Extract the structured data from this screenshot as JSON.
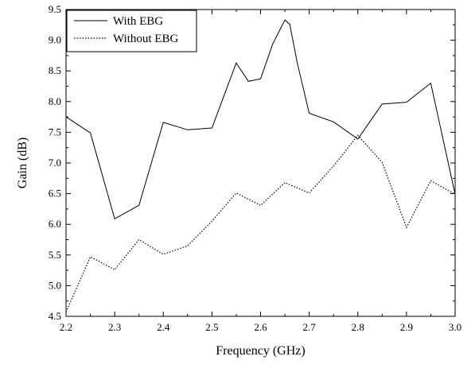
{
  "chart_data": {
    "type": "line",
    "title": "",
    "xlabel": "Frequency (GHz)",
    "ylabel": "Gain (dB)",
    "xlim": [
      2.2,
      3.0
    ],
    "ylim": [
      4.5,
      9.5
    ],
    "xticks": [
      2.2,
      2.3,
      2.4,
      2.5,
      2.6,
      2.7,
      2.8,
      2.9,
      3.0
    ],
    "xtick_labels": [
      "2.2",
      "2.3",
      "2.4",
      "2.5",
      "2.6",
      "2.7",
      "2.8",
      "2.9",
      "3.0"
    ],
    "yticks": [
      4.5,
      5.0,
      5.5,
      6.0,
      6.5,
      7.0,
      7.5,
      8.0,
      8.5,
      9.0,
      9.5
    ],
    "ytick_labels": [
      "4.5",
      "5.0",
      "5.5",
      "6.0",
      "6.5",
      "7.0",
      "7.5",
      "8.0",
      "8.5",
      "9.0",
      "9.5"
    ],
    "grid": false,
    "legend_position": "top-left",
    "series": [
      {
        "name": "With EBG",
        "style": "solid",
        "color": "#000000",
        "x": [
          2.2,
          2.25,
          2.3,
          2.35,
          2.4,
          2.45,
          2.5,
          2.55,
          2.575,
          2.6,
          2.625,
          2.65,
          2.66,
          2.675,
          2.7,
          2.75,
          2.8,
          2.85,
          2.9,
          2.95,
          3.0
        ],
        "y": [
          7.75,
          7.49,
          6.09,
          6.31,
          7.66,
          7.54,
          7.57,
          8.63,
          8.33,
          8.37,
          8.94,
          9.33,
          9.26,
          8.65,
          7.81,
          7.67,
          7.39,
          7.96,
          7.99,
          8.3,
          6.49
        ]
      },
      {
        "name": "Without EBG",
        "style": "dotted",
        "color": "#000000",
        "x": [
          2.2,
          2.25,
          2.3,
          2.35,
          2.4,
          2.45,
          2.5,
          2.55,
          2.6,
          2.65,
          2.7,
          2.75,
          2.8,
          2.85,
          2.9,
          2.95,
          3.0
        ],
        "y": [
          4.57,
          5.47,
          5.26,
          5.75,
          5.51,
          5.65,
          6.05,
          6.51,
          6.31,
          6.68,
          6.51,
          6.95,
          7.45,
          7.01,
          5.95,
          6.71,
          6.49
        ]
      }
    ]
  }
}
